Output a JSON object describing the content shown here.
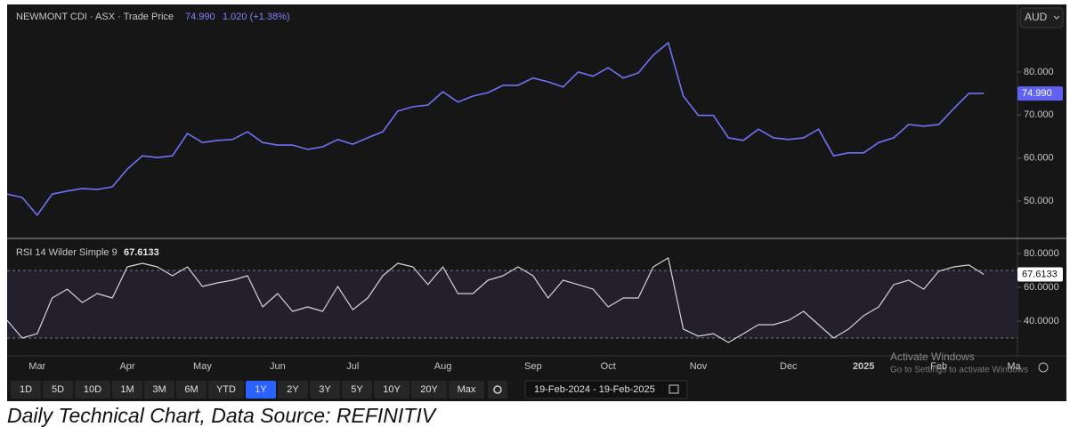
{
  "header": {
    "currency": "AUD"
  },
  "chart_data": [
    {
      "type": "line",
      "title": "NEWMONT CDI · ASX · Trade Price",
      "last_value_label": "74.990",
      "change": "1.020 (+1.38%)",
      "color": "#6f72f7",
      "values": [
        51.6,
        50.8,
        46.7,
        51.6,
        52.3,
        52.9,
        52.7,
        53.3,
        57.4,
        60.5,
        60.1,
        60.5,
        65.7,
        63.6,
        64.1,
        64.3,
        66.1,
        63.6,
        63.0,
        63.0,
        62.0,
        62.6,
        64.3,
        63.2,
        64.7,
        66.1,
        70.9,
        71.9,
        72.3,
        75.4,
        73.0,
        74.4,
        75.2,
        76.9,
        76.9,
        78.6,
        77.7,
        76.5,
        80.0,
        79.0,
        81.0,
        78.6,
        79.8,
        83.9,
        86.8,
        74.4,
        69.9,
        69.9,
        64.7,
        64.1,
        66.7,
        64.7,
        64.3,
        64.7,
        66.7,
        60.5,
        61.2,
        61.2,
        63.6,
        64.7,
        67.8,
        67.4,
        67.8,
        71.5,
        75.0,
        74.99,
        null,
        null
      ],
      "ylim": [
        41.5,
        95.7
      ],
      "yticks": [
        {
          "value": 50,
          "label": "50.000"
        },
        {
          "value": 60,
          "label": "60.000"
        },
        {
          "value": 70,
          "label": "70.000"
        },
        {
          "value": 80,
          "label": "80.000"
        }
      ]
    },
    {
      "type": "line",
      "title": "RSI 14 Wilder Simple 9",
      "last_value_label": "67.6133",
      "color": "#d4d4d4",
      "categories": [
        null,
        null,
        "Mar",
        null,
        null,
        null,
        null,
        null,
        "Apr",
        null,
        null,
        null,
        null,
        "May",
        null,
        null,
        null,
        null,
        "Jun",
        null,
        null,
        null,
        null,
        "Jul",
        null,
        null,
        null,
        null,
        null,
        "Aug",
        null,
        null,
        null,
        null,
        null,
        "Sep",
        null,
        null,
        null,
        null,
        "Oct",
        null,
        null,
        null,
        null,
        null,
        "Nov",
        null,
        null,
        null,
        null,
        null,
        "Dec",
        null,
        null,
        null,
        null,
        "2025",
        null,
        null,
        null,
        null,
        "Feb",
        null,
        null,
        null,
        null,
        "Ma"
      ],
      "values": [
        40.5,
        30,
        32.6,
        53.7,
        58.9,
        51,
        56.3,
        53.7,
        72.1,
        74.2,
        72.1,
        66.8,
        72.1,
        60.5,
        62.6,
        64.2,
        66.8,
        48.4,
        56.3,
        45.8,
        48.4,
        45.8,
        60.5,
        46.8,
        53.7,
        66.8,
        74.2,
        72.1,
        61.6,
        72.1,
        56.3,
        56.3,
        64.2,
        66.8,
        72.1,
        66.8,
        53.7,
        64.2,
        61.6,
        58.9,
        48.4,
        53.7,
        53.7,
        72.1,
        77.4,
        35.3,
        31.1,
        32.6,
        27.4,
        32.6,
        37.9,
        37.9,
        40.5,
        45.8,
        37.9,
        30,
        35.3,
        43.2,
        48.4,
        61.6,
        64.2,
        58.9,
        69.5,
        72.1,
        73.2,
        67.6133,
        null,
        null
      ],
      "ylim": [
        19.5,
        88.9
      ],
      "yticks": [
        {
          "value": 40,
          "label": "40.0000"
        },
        {
          "value": 60,
          "label": "60.0000"
        },
        {
          "value": 80,
          "label": "80.0000"
        }
      ],
      "levels": [
        70,
        30
      ]
    }
  ],
  "toolbar": {
    "ranges": [
      "1D",
      "5D",
      "10D",
      "1M",
      "3M",
      "6M",
      "YTD",
      "1Y",
      "2Y",
      "3Y",
      "5Y",
      "10Y",
      "20Y",
      "Max"
    ],
    "selected": 7,
    "date_range": "19-Feb-2024 - 19-Feb-2025"
  },
  "watermark": [
    "Activate Windows",
    "Go to Settings to activate Windows"
  ],
  "caption": "Daily Technical Chart, Data Source: REFINITIV"
}
